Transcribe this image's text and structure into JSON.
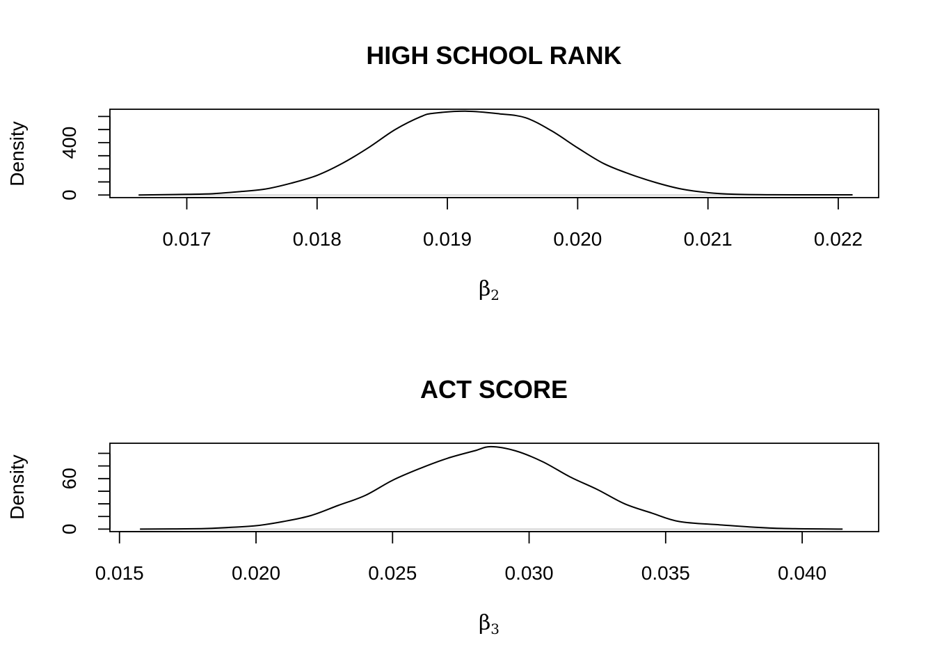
{
  "chart_data": [
    {
      "type": "line",
      "title": "HIGH SCHOOL RANK",
      "ylabel": "Density",
      "xlabel": "β",
      "xlabel_subscript": "2",
      "xlim": [
        0.01641,
        0.02231
      ],
      "ylim": [
        -20,
        655
      ],
      "xticks": [
        0.017,
        0.018,
        0.019,
        0.02,
        0.021,
        0.022
      ],
      "xtick_labels": [
        "0.017",
        "0.018",
        "0.019",
        "0.020",
        "0.021",
        "0.022"
      ],
      "yticks": [
        0,
        100,
        200,
        300,
        400,
        500,
        600
      ],
      "ytick_labels": [
        "0",
        "",
        "",
        "",
        "400",
        "",
        ""
      ],
      "grid": false,
      "series": [
        {
          "x": [
            0.01663,
            0.017,
            0.0172,
            0.0174,
            0.0176,
            0.0178,
            0.018,
            0.0182,
            0.0184,
            0.0186,
            0.0188,
            0.0189,
            0.01915,
            0.0194,
            0.0196,
            0.0198,
            0.02,
            0.0202,
            0.0204,
            0.0206,
            0.0208,
            0.021,
            0.0212,
            0.0215,
            0.02211
          ],
          "y": [
            0,
            5,
            10,
            25,
            45,
            90,
            150,
            245,
            365,
            500,
            600,
            625,
            640,
            620,
            590,
            490,
            360,
            240,
            160,
            95,
            45,
            18,
            6,
            2,
            1
          ]
        }
      ]
    },
    {
      "type": "line",
      "title": "ACT SCORE",
      "ylabel": "Density",
      "xlabel": "β",
      "xlabel_subscript": "3",
      "xlim": [
        0.01465,
        0.0428
      ],
      "ylim": [
        -3,
        102
      ],
      "xticks": [
        0.015,
        0.02,
        0.025,
        0.03,
        0.035,
        0.04
      ],
      "xtick_labels": [
        "0.015",
        "0.020",
        "0.025",
        "0.030",
        "0.035",
        "0.040"
      ],
      "yticks": [
        0,
        15,
        30,
        45,
        60,
        75,
        90
      ],
      "ytick_labels": [
        "0",
        "",
        "",
        "",
        "60",
        "",
        ""
      ],
      "grid": false,
      "series": [
        {
          "x": [
            0.01575,
            0.018,
            0.019,
            0.02,
            0.021,
            0.022,
            0.023,
            0.024,
            0.025,
            0.026,
            0.027,
            0.028,
            0.0286,
            0.0295,
            0.0305,
            0.0315,
            0.0325,
            0.0335,
            0.0345,
            0.0355,
            0.037,
            0.039,
            0.04148
          ],
          "y": [
            0,
            0.5,
            2,
            4,
            9,
            16,
            28,
            40,
            58,
            72,
            84,
            93,
            98,
            93,
            80,
            62,
            47,
            30,
            19,
            9,
            5,
            1,
            0
          ]
        }
      ]
    }
  ]
}
